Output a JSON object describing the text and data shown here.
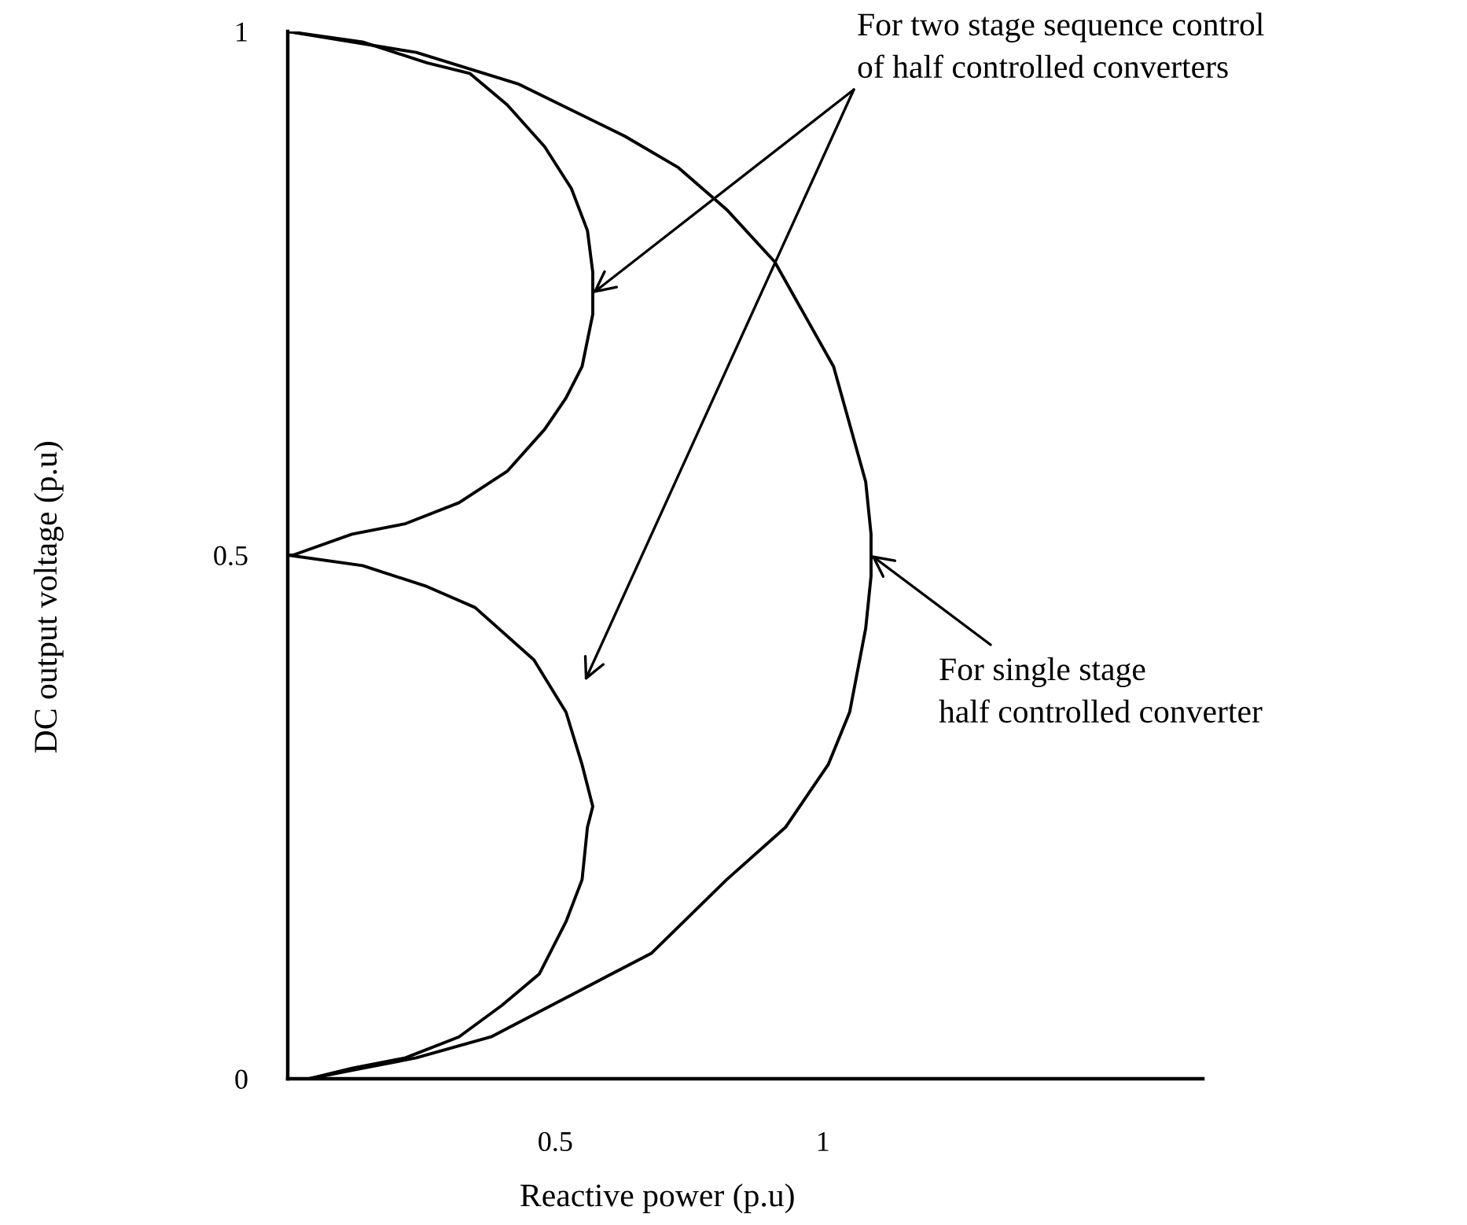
{
  "chart_data": {
    "type": "line",
    "xlabel": "Reactive power (p.u)",
    "ylabel": "DC output voltage (p.u)",
    "xlim": [
      0,
      1.71
    ],
    "ylim": [
      0,
      1
    ],
    "xticks": [
      0.5,
      1
    ],
    "yticks": [
      0,
      0.5,
      1
    ],
    "line_style": "solid",
    "series": [
      {
        "color": "#000000",
        "x": [
          0,
          0.24,
          0.43,
          0.63,
          0.73,
          0.82,
          0.91,
          1.02,
          1.08,
          1.09,
          1.09,
          1.08,
          1.05,
          1.01,
          0.93,
          0.82,
          0.68,
          0.53,
          0.38,
          0.24,
          0.14,
          0.04,
          0
        ],
        "values": [
          1,
          0.98,
          0.95,
          0.9,
          0.87,
          0.83,
          0.78,
          0.68,
          0.57,
          0.52,
          0.48,
          0.43,
          0.35,
          0.3,
          0.24,
          0.19,
          0.12,
          0.08,
          0.04,
          0.02,
          0.01,
          0,
          0
        ]
      },
      {
        "color": "#000000",
        "x": [
          0,
          0.14,
          0.26,
          0.34,
          0.41,
          0.48,
          0.53,
          0.56,
          0.57,
          0.57,
          0.55,
          0.52,
          0.48,
          0.41,
          0.32,
          0.22,
          0.12,
          0.01,
          0
        ],
        "values": [
          1,
          0.99,
          0.97,
          0.96,
          0.93,
          0.89,
          0.85,
          0.81,
          0.77,
          0.73,
          0.68,
          0.65,
          0.62,
          0.58,
          0.55,
          0.53,
          0.52,
          0.5,
          0.5
        ]
      },
      {
        "color": "#000000",
        "x": [
          0,
          0.14,
          0.26,
          0.35,
          0.46,
          0.52,
          0.55,
          0.57,
          0.56,
          0.55,
          0.52,
          0.47,
          0.4,
          0.32,
          0.22,
          0.12,
          0.04,
          0
        ],
        "values": [
          0.5,
          0.49,
          0.47,
          0.45,
          0.4,
          0.35,
          0.3,
          0.26,
          0.24,
          0.19,
          0.15,
          0.1,
          0.07,
          0.04,
          0.02,
          0.01,
          0,
          0
        ]
      }
    ],
    "annotations": [
      {
        "text": "For two stage sequence control\nof half controlled converters",
        "x": 0.57,
        "y": 0.75
      },
      {
        "text": "For single stage\nhalf controlled converter",
        "x": 1.09,
        "y": 0.5
      }
    ]
  }
}
